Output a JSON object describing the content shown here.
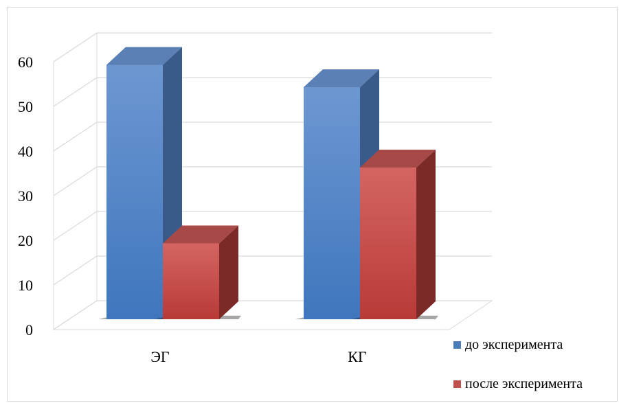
{
  "chart_data": {
    "type": "bar",
    "title": "",
    "xlabel": "",
    "ylabel": "",
    "categories": [
      "ЭГ",
      "КГ"
    ],
    "series": [
      {
        "name": "до эксперимента",
        "values": [
          57,
          52
        ],
        "color": "#4a7ebb"
      },
      {
        "name": "после эксперимента",
        "values": [
          17,
          34
        ],
        "color": "#c0504d"
      }
    ],
    "ylim": [
      0,
      60
    ],
    "yticks": [
      "0",
      "10",
      "20",
      "30",
      "40",
      "50",
      "60"
    ],
    "grid": true,
    "legend_position": "bottom-right"
  }
}
